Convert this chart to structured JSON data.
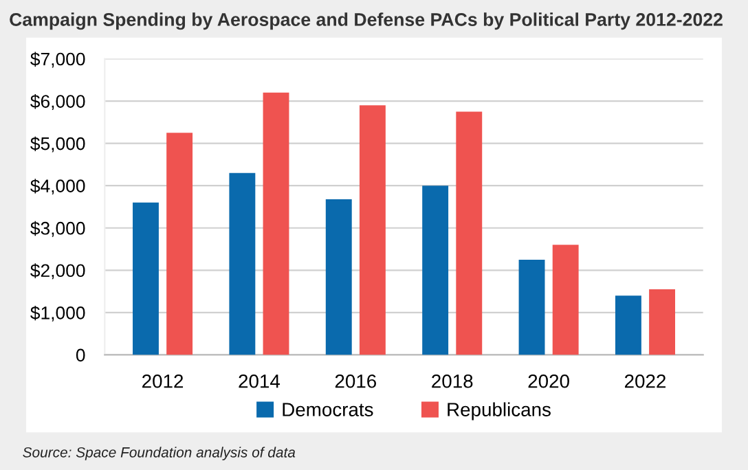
{
  "chart_data": {
    "type": "bar",
    "title": "Campaign Spending by Aerospace and Defense PACs by Political Party 2012-2022",
    "categories": [
      "2012",
      "2014",
      "2016",
      "2018",
      "2020",
      "2022"
    ],
    "series": [
      {
        "name": "Democrats",
        "color": "#0a6aad",
        "values": [
          3600,
          4300,
          3680,
          4000,
          2250,
          1400
        ]
      },
      {
        "name": "Republicans",
        "color": "#ef5350",
        "values": [
          5250,
          6200,
          5900,
          5750,
          2600,
          1550
        ]
      }
    ],
    "ylim": [
      0,
      7000
    ],
    "yticks": [
      {
        "value": 0,
        "label": "0"
      },
      {
        "value": 1000,
        "label": "$1,000"
      },
      {
        "value": 2000,
        "label": "$2,000"
      },
      {
        "value": 3000,
        "label": "$3,000"
      },
      {
        "value": 4000,
        "label": "$4,000"
      },
      {
        "value": 5000,
        "label": "$5,000"
      },
      {
        "value": 6000,
        "label": "$6,000"
      },
      {
        "value": 7000,
        "label": "$7,000"
      }
    ],
    "grid": "y",
    "legend": "bottom",
    "annotations": [
      "Source: Space Foundation analysis of data"
    ]
  }
}
